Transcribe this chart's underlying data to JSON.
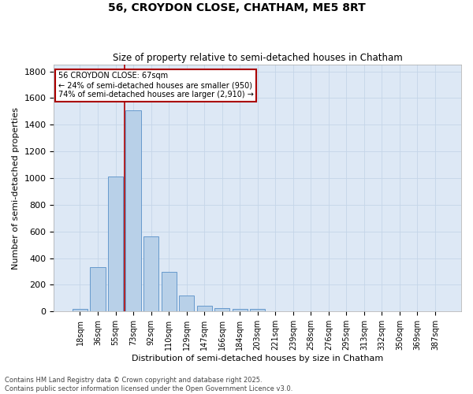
{
  "title1": "56, CROYDON CLOSE, CHATHAM, ME5 8RT",
  "title2": "Size of property relative to semi-detached houses in Chatham",
  "xlabel": "Distribution of semi-detached houses by size in Chatham",
  "ylabel": "Number of semi-detached properties",
  "bar_labels": [
    "18sqm",
    "36sqm",
    "55sqm",
    "73sqm",
    "92sqm",
    "110sqm",
    "129sqm",
    "147sqm",
    "166sqm",
    "184sqm",
    "203sqm",
    "221sqm",
    "239sqm",
    "258sqm",
    "276sqm",
    "295sqm",
    "313sqm",
    "332sqm",
    "350sqm",
    "369sqm",
    "387sqm"
  ],
  "bar_values": [
    20,
    335,
    1010,
    1510,
    565,
    300,
    120,
    45,
    25,
    20,
    20,
    0,
    0,
    0,
    0,
    0,
    0,
    0,
    0,
    0,
    0
  ],
  "bar_color": "#b8d0e8",
  "bar_edge_color": "#6699cc",
  "annotation_text": "56 CROYDON CLOSE: 67sqm\n← 24% of semi-detached houses are smaller (950)\n74% of semi-detached houses are larger (2,910) →",
  "annotation_color": "#aa0000",
  "vline_x": 2.5,
  "ylim": [
    0,
    1850
  ],
  "yticks": [
    0,
    200,
    400,
    600,
    800,
    1000,
    1200,
    1400,
    1600,
    1800
  ],
  "ax_facecolor": "#dde8f5",
  "background_color": "#ffffff",
  "grid_color": "#c5d5e8",
  "footer1": "Contains HM Land Registry data © Crown copyright and database right 2025.",
  "footer2": "Contains public sector information licensed under the Open Government Licence v3.0."
}
